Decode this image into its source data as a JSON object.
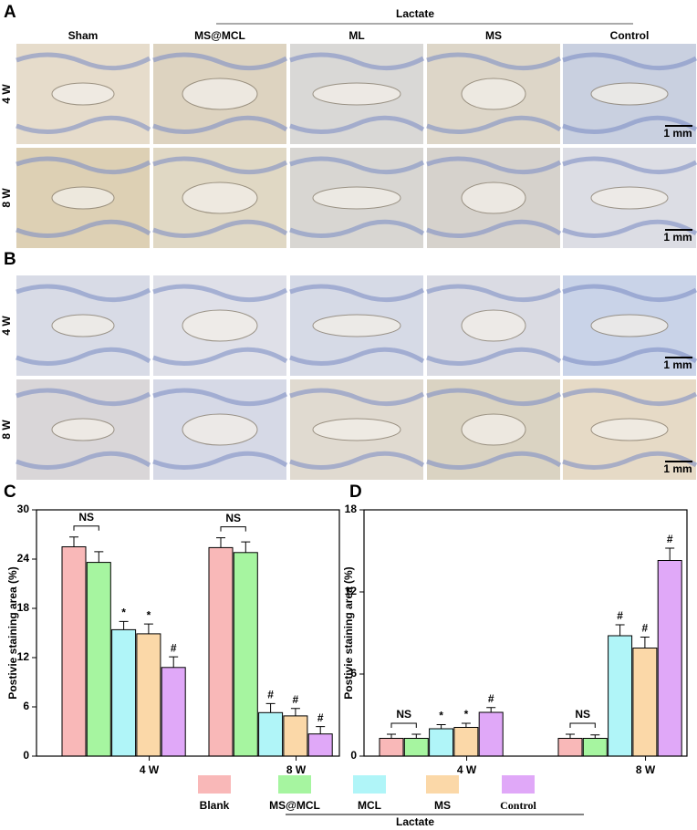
{
  "panels": {
    "A": "A",
    "B": "B",
    "group_label": "Lactate",
    "columns": [
      "Sham",
      "MS@MCL",
      "ML",
      "MS",
      "Control"
    ],
    "rows": [
      "4 W",
      "8 W"
    ],
    "scale_bar": "1 mm"
  },
  "chart_data": [
    {
      "type": "bar",
      "panel_label": "C",
      "ylabel": "Postivie staining area (%)",
      "categories": [
        "4 W",
        "8 W"
      ],
      "ylim": [
        0,
        30
      ],
      "yticks": [
        0,
        6,
        12,
        18,
        24,
        30
      ],
      "brackets": [
        "NS",
        "NS"
      ],
      "series": [
        {
          "name": "Blank",
          "color": "#f9b8b8",
          "values": [
            25.5,
            25.4
          ],
          "errors": [
            1.2,
            1.2
          ]
        },
        {
          "name": "MS@MCL",
          "color": "#a6f5a0",
          "values": [
            23.6,
            24.8
          ],
          "errors": [
            1.3,
            1.3
          ]
        },
        {
          "name": "MCL",
          "color": "#b0f5f8",
          "values": [
            15.4,
            5.3
          ],
          "errors": [
            1.0,
            1.1
          ],
          "significance": [
            "*",
            "#"
          ]
        },
        {
          "name": "MS",
          "color": "#fbd8a8",
          "values": [
            14.9,
            4.9
          ],
          "errors": [
            1.2,
            0.9
          ],
          "significance": [
            "*",
            "#"
          ]
        },
        {
          "name": "Control",
          "color": "#e0a8f8",
          "values": [
            10.8,
            2.7
          ],
          "errors": [
            1.3,
            0.9
          ],
          "significance": [
            "#",
            "#"
          ]
        }
      ]
    },
    {
      "type": "bar",
      "panel_label": "D",
      "ylabel": "Postivie staining area (%)",
      "categories": [
        "4 W",
        "8 W"
      ],
      "ylim": [
        0,
        18
      ],
      "yticks": [
        0,
        6,
        12,
        18
      ],
      "brackets": [
        "NS",
        "NS"
      ],
      "series": [
        {
          "name": "Blank",
          "color": "#f9b8b8",
          "values": [
            1.3,
            1.3
          ],
          "errors": [
            0.3,
            0.3
          ]
        },
        {
          "name": "MS@MCL",
          "color": "#a6f5a0",
          "values": [
            1.3,
            1.3
          ],
          "errors": [
            0.3,
            0.25
          ]
        },
        {
          "name": "MCL",
          "color": "#b0f5f8",
          "values": [
            2.0,
            8.8
          ],
          "errors": [
            0.3,
            0.8
          ],
          "significance": [
            "*",
            "#"
          ]
        },
        {
          "name": "MS",
          "color": "#fbd8a8",
          "values": [
            2.1,
            7.9
          ],
          "errors": [
            0.3,
            0.8
          ],
          "significance": [
            "*",
            "#"
          ]
        },
        {
          "name": "Control",
          "color": "#e0a8f8",
          "values": [
            3.2,
            14.3
          ],
          "errors": [
            0.35,
            0.9
          ],
          "significance": [
            "#",
            "#"
          ]
        }
      ]
    }
  ],
  "legend_group_label": "Lactate"
}
